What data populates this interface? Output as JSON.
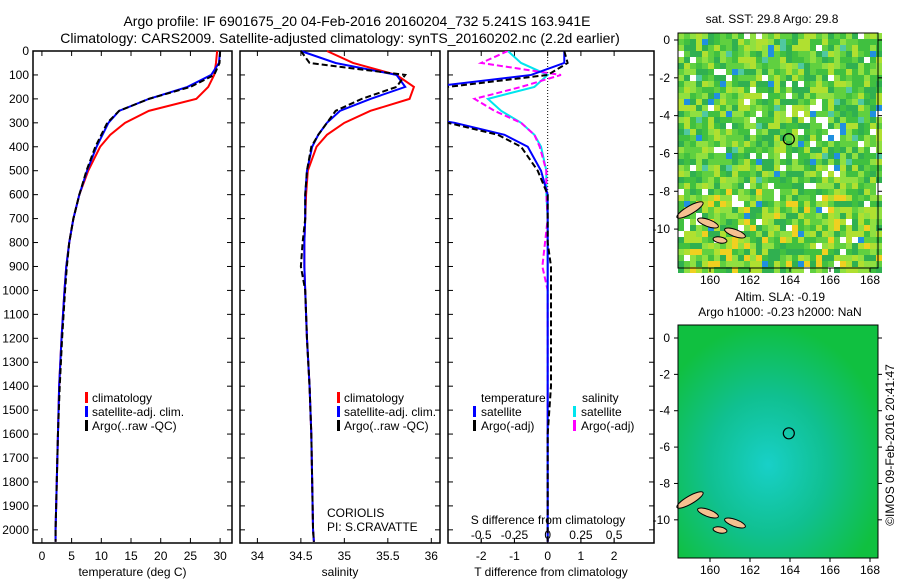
{
  "title_line1": "Argo profile: IF 6901675_20 04-Feb-2016 20160204_732 5.241S 163.941E",
  "title_line2": "Climatology: CARS2009. Satellite-adjusted climatology: synTS_20160202.nc (2.2d earlier)",
  "colors": {
    "clim": "#ff0000",
    "sat": "#0000ff",
    "argo": "#000000",
    "sal_sat": "#00e5ee",
    "sal_argo": "#ff00ff"
  },
  "chart_data": [
    {
      "type": "line",
      "name": "temperature",
      "xlabel": "temperature (deg C)",
      "xticks": [
        "0",
        "5",
        "10",
        "15",
        "20",
        "25",
        "30"
      ],
      "xlim": [
        -1.5,
        32
      ],
      "ylim": [
        0,
        2055
      ],
      "yticks": [
        "0",
        "100",
        "200",
        "300",
        "400",
        "500",
        "600",
        "700",
        "800",
        "900",
        "1000",
        "1100",
        "1200",
        "1300",
        "1400",
        "1500",
        "1600",
        "1700",
        "1800",
        "1900",
        "2000"
      ],
      "depth": [
        0,
        50,
        100,
        150,
        200,
        250,
        300,
        350,
        400,
        500,
        600,
        700,
        800,
        900,
        1000,
        1200,
        1400,
        1600,
        1800,
        2000,
        2050
      ],
      "series": [
        {
          "name": "climatology",
          "values": [
            29.5,
            29.3,
            29.0,
            28,
            26,
            18,
            14,
            11.5,
            9.8,
            7.8,
            6.3,
            5.3,
            4.6,
            4.1,
            3.8,
            3.3,
            2.9,
            2.7,
            2.5,
            2.3,
            2.3
          ]
        },
        {
          "name": "satellite-adj. clim.",
          "values": [
            30,
            29.8,
            28.5,
            24.5,
            18,
            13,
            11.2,
            10.2,
            9.2,
            7.6,
            6.3,
            5.3,
            4.6,
            4.1,
            3.8,
            3.3,
            2.9,
            2.7,
            2.5,
            2.3,
            2.3
          ]
        },
        {
          "name": "Argo(..raw -QC)",
          "values": [
            30,
            29.9,
            29,
            25,
            18,
            13,
            11,
            10,
            9,
            7.5,
            6.3,
            5.3,
            4.6,
            4.2,
            3.9,
            3.4,
            3.0,
            2.7,
            2.5,
            2.3,
            2.3
          ]
        }
      ]
    },
    {
      "type": "line",
      "name": "salinity",
      "xlabel": "salinity",
      "xticks": [
        "34",
        "34.5",
        "35",
        "35.5",
        "36"
      ],
      "xlim": [
        33.8,
        36.1
      ],
      "ylim": [
        0,
        2055
      ],
      "depth": [
        0,
        50,
        100,
        150,
        200,
        250,
        300,
        350,
        400,
        500,
        600,
        700,
        800,
        900,
        1000,
        1200,
        1400,
        1600,
        1800,
        2000,
        2050
      ],
      "series": [
        {
          "name": "climatology",
          "values": [
            34.8,
            35.1,
            35.6,
            35.8,
            35.75,
            35.3,
            35.0,
            34.8,
            34.68,
            34.58,
            34.56,
            34.55,
            34.54,
            34.54,
            34.55,
            34.57,
            34.6,
            34.62,
            34.63,
            34.64,
            34.65
          ]
        },
        {
          "name": "satellite-adj. clim.",
          "values": [
            34.5,
            34.9,
            35.6,
            35.7,
            35.3,
            34.95,
            34.8,
            34.7,
            34.63,
            34.57,
            34.55,
            34.55,
            34.54,
            34.54,
            34.55,
            34.57,
            34.6,
            34.62,
            34.63,
            34.64,
            34.65
          ]
        },
        {
          "name": "Argo(..raw -QC)",
          "values": [
            34.5,
            34.6,
            35.7,
            35.6,
            35.2,
            34.9,
            34.8,
            34.7,
            34.62,
            34.57,
            34.55,
            34.55,
            34.52,
            34.5,
            34.55,
            34.57,
            34.6,
            34.62,
            34.63,
            34.64,
            34.65
          ]
        }
      ],
      "annotation1": "CORIOLIS",
      "annotation2": "PI: S.CRAVATTE"
    },
    {
      "type": "line",
      "name": "difference",
      "xlabel": "T difference from climatology",
      "xticks": [
        "-2",
        "-1",
        "0",
        "1",
        "2"
      ],
      "xlim": [
        -3,
        3.2
      ],
      "x2label": "S difference from climatology",
      "x2ticks": [
        "-0.5",
        "-0.25",
        "0",
        "0.25",
        "0.5"
      ],
      "legend_temperature": "temperature",
      "legend_salinity": "salinity",
      "legend_satellite": "satellite",
      "legend_argo": "Argo(-adj)"
    }
  ],
  "legend": {
    "clim": "climatology",
    "sat": "satellite-adj. clim.",
    "argo": "Argo(..raw -QC)"
  },
  "map_sst": {
    "title": "sat. SST: 29.8 Argo: 29.8",
    "xticks": [
      "160",
      "162",
      "164",
      "166",
      "168"
    ],
    "yticks": [
      "0",
      "-2",
      "-4",
      "-6",
      "-8",
      "-10"
    ]
  },
  "map_sla": {
    "title1": "Altim. SLA: -0.19",
    "title2": "Argo h1000: -0.23 h2000: NaN",
    "xticks": [
      "160",
      "162",
      "164",
      "166",
      "168"
    ],
    "yticks": [
      "0",
      "-2",
      "-4",
      "-6",
      "-8",
      "-10"
    ]
  },
  "credit": "©IMOS 09-Feb-2016 20:41:47"
}
